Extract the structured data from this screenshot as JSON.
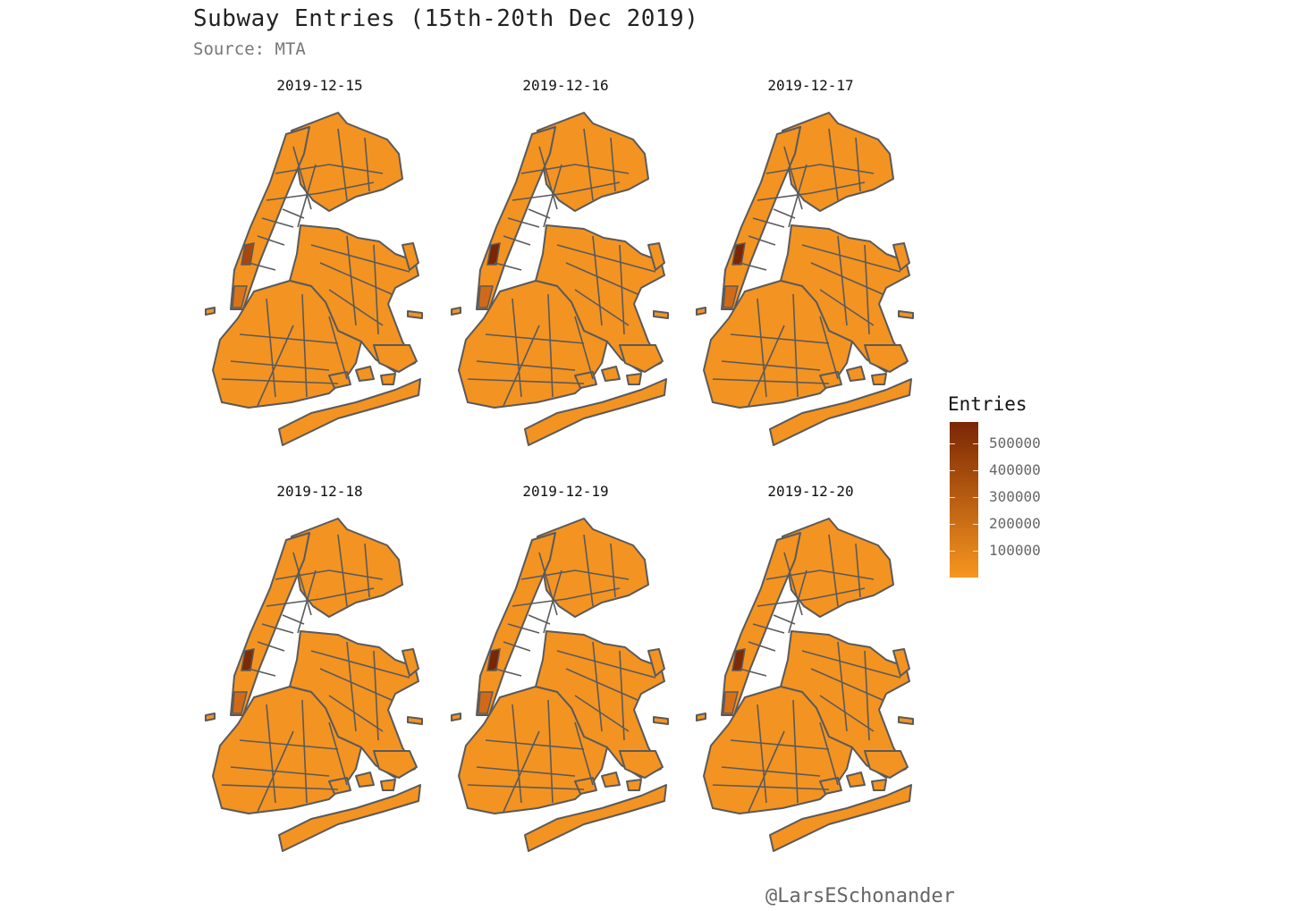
{
  "title": "Subway Entries (15th-20th Dec 2019)",
  "subtitle": "Source: MTA",
  "credit": "@LarsESchonander",
  "colors": {
    "base_fill": "#F39322",
    "border": "#5A5A5A",
    "low": "#F7961F",
    "high": "#7A2604"
  },
  "panels": [
    {
      "label": "2019-12-15",
      "peak_color": "#A8460E",
      "secondary_color": "#D9741A"
    },
    {
      "label": "2019-12-16",
      "peak_color": "#7A2604",
      "secondary_color": "#D06A18"
    },
    {
      "label": "2019-12-17",
      "peak_color": "#7A2604",
      "secondary_color": "#D06A18"
    },
    {
      "label": "2019-12-18",
      "peak_color": "#7E2A05",
      "secondary_color": "#D06A18"
    },
    {
      "label": "2019-12-19",
      "peak_color": "#7A2604",
      "secondary_color": "#D06A18"
    },
    {
      "label": "2019-12-20",
      "peak_color": "#7E2A05",
      "secondary_color": "#D57018"
    }
  ],
  "legend": {
    "title": "Entries",
    "ticks": [
      "500000",
      "400000",
      "300000",
      "200000",
      "100000"
    ],
    "tick_values": [
      500000,
      400000,
      300000,
      200000,
      100000
    ],
    "range": [
      0,
      580000
    ]
  }
}
